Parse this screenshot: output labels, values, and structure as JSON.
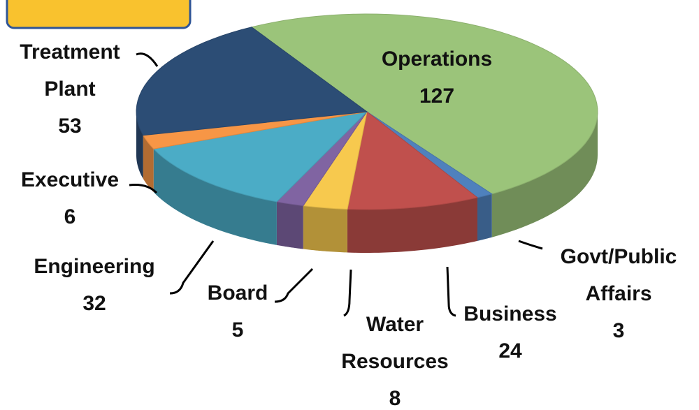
{
  "chart_data": {
    "type": "pie",
    "categories": [
      "Operations",
      "Govt/Public Affairs",
      "Business",
      "Water Resources",
      "Board",
      "Engineering",
      "Executive",
      "Treatment Plant"
    ],
    "values": [
      127,
      3,
      24,
      8,
      5,
      32,
      6,
      53
    ],
    "colors": [
      "#9bc47a",
      "#4f81bd",
      "#c0504d",
      "#f7c94e",
      "#8064a2",
      "#4bacc6",
      "#f79646",
      "#2c4d75"
    ]
  }
}
